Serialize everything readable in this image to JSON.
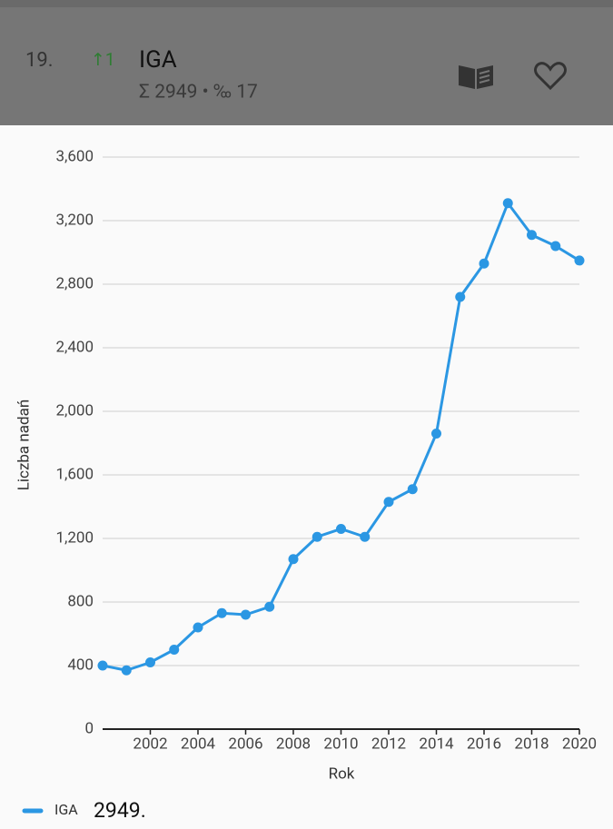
{
  "header": {
    "rank": "19.",
    "change": "↑1",
    "name": "IGA",
    "summary": "Σ 2949 • ‰ 17"
  },
  "legend_value": "2949.",
  "chart_data": {
    "type": "line",
    "y_label": "Liczba nadań",
    "x_label": "Rok",
    "x": [
      2000,
      2001,
      2002,
      2003,
      2004,
      2005,
      2006,
      2007,
      2008,
      2009,
      2010,
      2011,
      2012,
      2013,
      2014,
      2015,
      2016,
      2017,
      2018,
      2019,
      2020
    ],
    "series": [
      {
        "name": "IGA",
        "color": "#2b97e3",
        "values": [
          400,
          370,
          420,
          500,
          640,
          730,
          720,
          770,
          1070,
          1210,
          1260,
          1210,
          1430,
          1510,
          1860,
          2720,
          2930,
          3310,
          3110,
          3040,
          2949
        ]
      }
    ],
    "xlim": [
      2000,
      2020
    ],
    "xticks": [
      2002,
      2004,
      2006,
      2008,
      2010,
      2012,
      2014,
      2016,
      2018,
      2020
    ],
    "ylim": [
      0,
      3600
    ],
    "yticks": [
      0,
      400,
      800,
      {
        "value": 1200,
        "label": "1,200"
      },
      {
        "value": 1600,
        "label": "1,600"
      },
      {
        "value": 2000,
        "label": "2,000"
      },
      {
        "value": 2400,
        "label": "2,400"
      },
      {
        "value": 2800,
        "label": "2,800"
      },
      {
        "value": 3200,
        "label": "3,200"
      },
      {
        "value": 3600,
        "label": "3,600"
      }
    ],
    "grid": true
  }
}
